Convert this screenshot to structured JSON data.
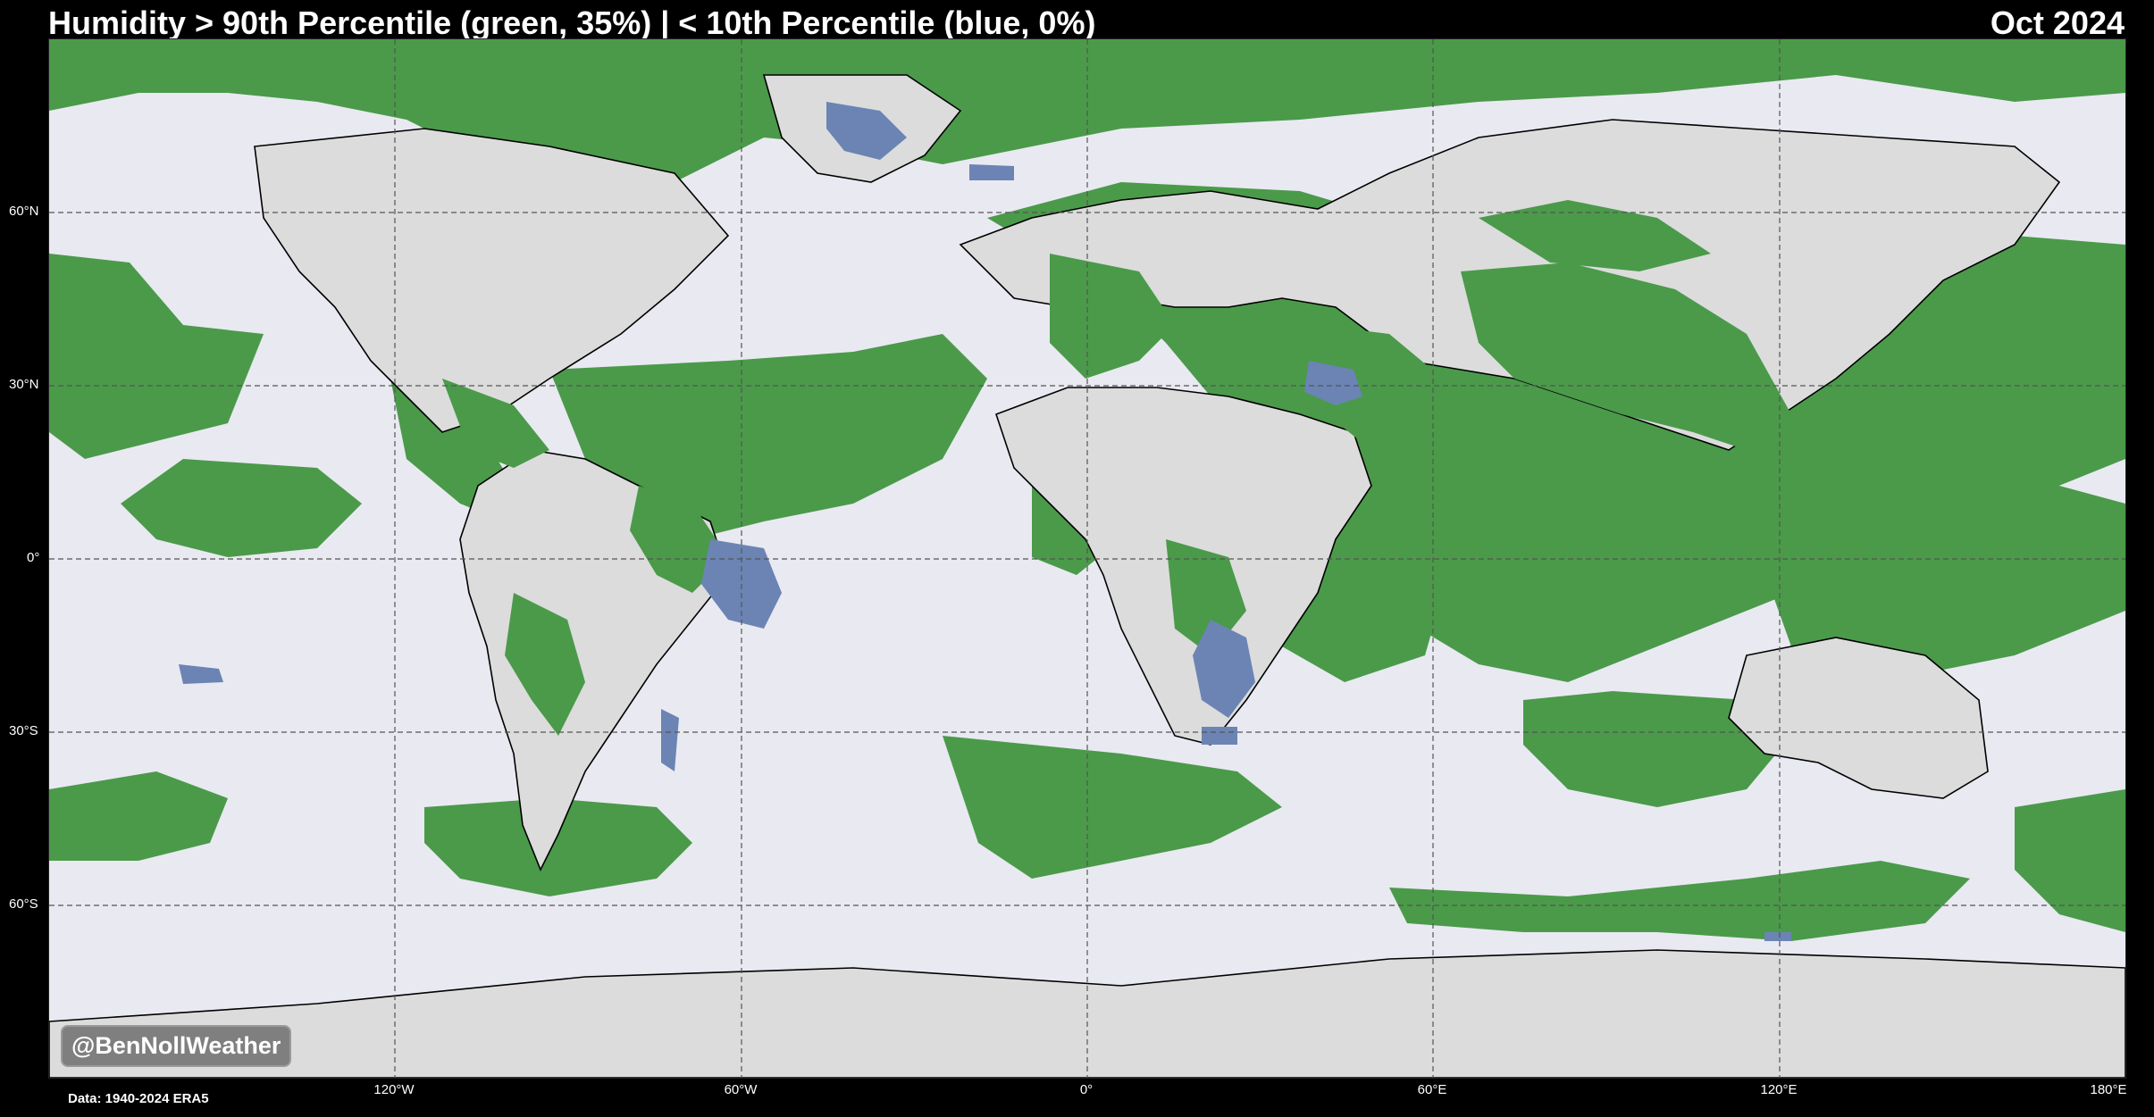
{
  "header": {
    "title": "Humidity > 90th Percentile (green, 35%) | < 10th Percentile (blue, 0%)",
    "date": "Oct 2024"
  },
  "map": {
    "colors": {
      "ocean": "#e9e9f1",
      "land": "#dcdcdc",
      "above_90th": "#4a9a4a",
      "below_10th": "#6b84b4",
      "borders": "#000000",
      "gridlines": "#666666"
    },
    "lat_labels": [
      "60°N",
      "30°N",
      "0°",
      "30°S",
      "60°S"
    ],
    "lon_labels": [
      "120°W",
      "60°W",
      "0°",
      "60°E",
      "120°E",
      "180°E"
    ]
  },
  "watermark": "@BenNollWeather",
  "source": "Data: 1940-2024 ERA5"
}
